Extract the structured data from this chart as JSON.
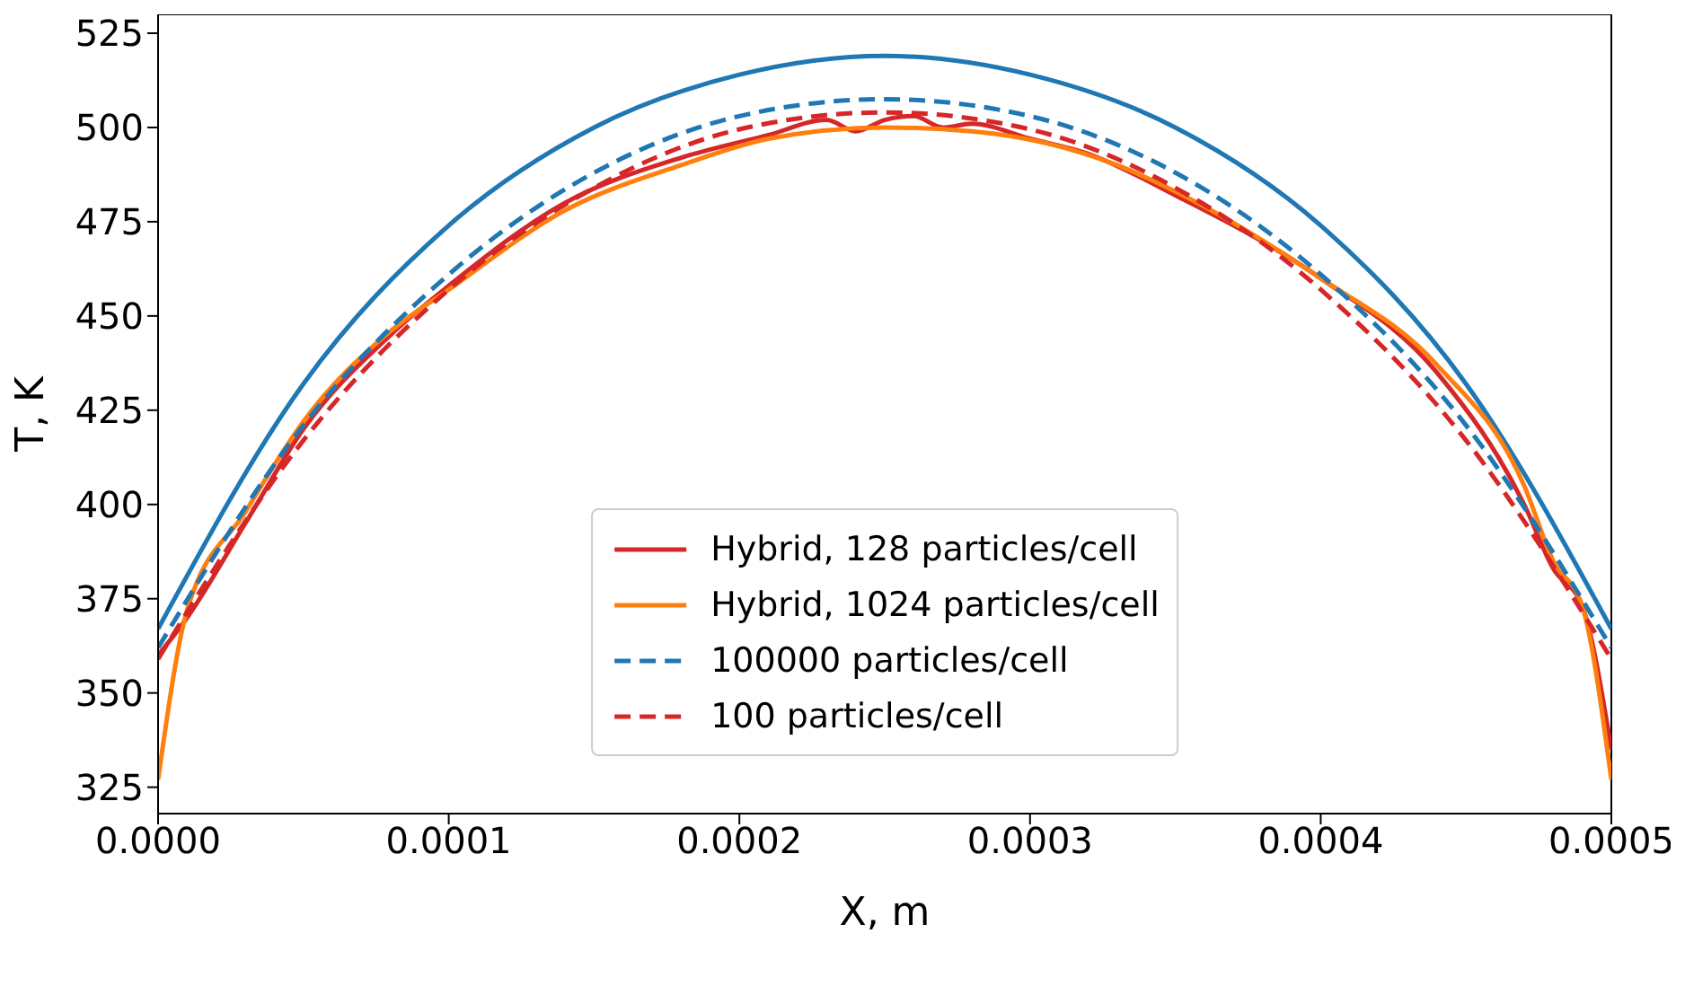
{
  "chart_data": {
    "type": "line",
    "xlabel": "X, m",
    "ylabel": "T, K",
    "xlim": [
      0,
      0.0005
    ],
    "ylim": [
      318,
      530
    ],
    "xticks": [
      {
        "value": 0,
        "label": "0.0000"
      },
      {
        "value": 0.0001,
        "label": "0.0001"
      },
      {
        "value": 0.0002,
        "label": "0.0002"
      },
      {
        "value": 0.0003,
        "label": "0.0003"
      },
      {
        "value": 0.0004,
        "label": "0.0004"
      },
      {
        "value": 0.0005,
        "label": "0.0005"
      }
    ],
    "yticks": [
      325,
      350,
      375,
      400,
      425,
      450,
      475,
      500,
      525
    ],
    "legend": "bottom",
    "marker": "none",
    "series": [
      {
        "color": "#1f77b4",
        "line_style": "solid",
        "x": [
          0,
          5e-05,
          0.0001,
          0.00015,
          0.0002,
          0.00025,
          0.0003,
          0.00035,
          0.0004,
          0.00045,
          0.0005
        ],
        "values": [
          367,
          432,
          474,
          500,
          514,
          519,
          514,
          500,
          474,
          432,
          367
        ]
      },
      {
        "name": "Hybrid, 128 particles/cell",
        "color": "#d62728",
        "line_style": "solid",
        "x": [
          0,
          1e-05,
          3e-05,
          5e-05,
          8e-05,
          0.0001,
          0.00014,
          0.00018,
          0.00021,
          0.00023,
          0.00024,
          0.00025,
          0.00026,
          0.00027,
          0.00028,
          0.0003,
          0.00032,
          0.00035,
          0.0004,
          0.00044,
          0.00047,
          0.00048,
          0.00049,
          0.0005
        ],
        "values": [
          360,
          370,
          395,
          420,
          445,
          458,
          480,
          492,
          498,
          502,
          499,
          502,
          503,
          500,
          501,
          497,
          493,
          482,
          460,
          435,
          400,
          383,
          373,
          335
        ]
      },
      {
        "name": "Hybrid, 1024 particles/cell",
        "color": "#ff7f0e",
        "line_style": "solid",
        "x": [
          0,
          1e-05,
          3e-05,
          5e-05,
          8e-05,
          0.0001,
          0.00014,
          0.00018,
          0.00021,
          0.00025,
          0.00028,
          0.00033,
          0.00035,
          0.0004,
          0.00044,
          0.00047,
          0.00048,
          0.00049,
          0.0005
        ],
        "values": [
          327,
          372,
          398,
          422,
          446,
          457,
          478,
          490,
          497,
          500,
          499,
          490,
          483,
          460,
          437,
          405,
          385,
          373,
          327
        ]
      },
      {
        "name": "100000 particles/cell",
        "color": "#1f77b4",
        "line_style": "dashed",
        "x": [
          0,
          5e-05,
          0.0001,
          0.00015,
          0.0002,
          0.00025,
          0.0003,
          0.00035,
          0.0004,
          0.00045,
          0.0005
        ],
        "values": [
          362,
          421,
          461,
          488,
          503,
          507.5,
          503,
          488,
          461,
          421,
          362
        ]
      },
      {
        "name": "100 particles/cell",
        "color": "#d62728",
        "line_style": "dashed",
        "x": [
          0,
          5e-05,
          0.0001,
          0.00015,
          0.0002,
          0.00025,
          0.0003,
          0.00035,
          0.0004,
          0.00045,
          0.0005
        ],
        "values": [
          359,
          417,
          457,
          484,
          499.5,
          504,
          499.5,
          484,
          457,
          417,
          359
        ]
      }
    ]
  }
}
